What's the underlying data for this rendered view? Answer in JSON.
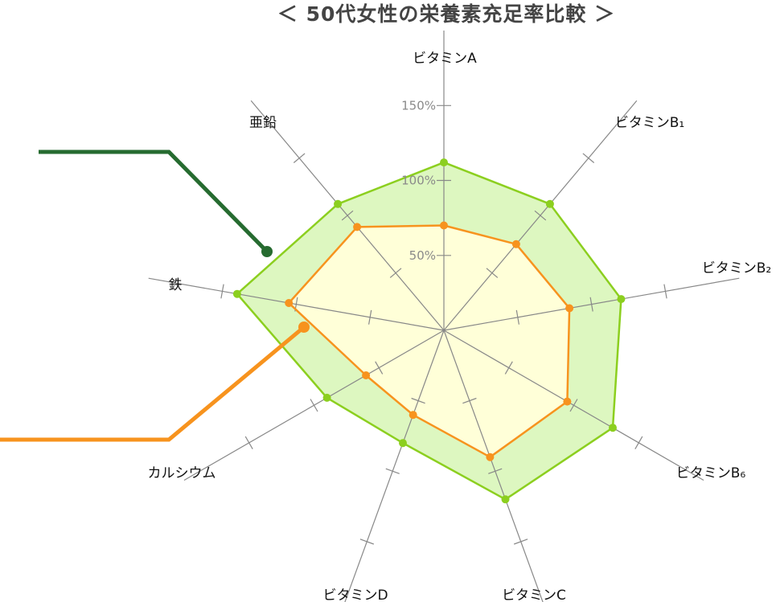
{
  "chart_data": {
    "type": "radar",
    "title": "＜ 50代女性の栄養素充足率比較 ＞",
    "axes": [
      "ビタミンA",
      "ビタミンB₁",
      "ビタミンB₂",
      "ビタミンB₆",
      "ビタミンC",
      "ビタミンD",
      "カルシウム",
      "鉄",
      "亜鉛"
    ],
    "ticks": [
      {
        "value": 50,
        "label": "50%"
      },
      {
        "value": 100,
        "label": "100%"
      },
      {
        "value": 150,
        "label": "150%"
      }
    ],
    "rmax": 200,
    "grid": false,
    "legend": "none",
    "series": [
      {
        "color": "#8ccf1f",
        "fill": "#ddf7c0",
        "values": [
          112,
          110,
          120,
          130,
          120,
          80,
          90,
          140,
          110
        ]
      },
      {
        "color": "#f7931e",
        "fill": "#ffffd8",
        "values": [
          70,
          75,
          85,
          95,
          90,
          60,
          60,
          105,
          90
        ]
      }
    ],
    "callouts": [
      {
        "color": "#266b30"
      },
      {
        "color": "#f7931e"
      }
    ]
  }
}
